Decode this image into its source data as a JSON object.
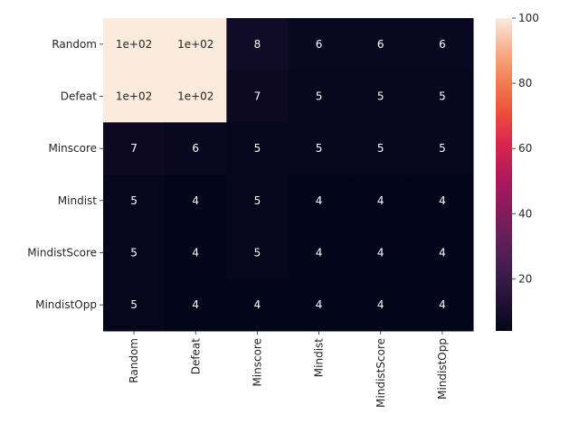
{
  "chart_data": {
    "type": "heatmap",
    "title": "",
    "xlabel": "",
    "ylabel": "",
    "x_categories": [
      "Random",
      "Defeat",
      "Minscore",
      "Mindist",
      "MindistScore",
      "MindistOpp"
    ],
    "y_categories": [
      "Random",
      "Defeat",
      "Minscore",
      "Mindist",
      "MindistScore",
      "MindistOpp"
    ],
    "values": [
      [
        100,
        100,
        8,
        6,
        6,
        6
      ],
      [
        100,
        100,
        7,
        5,
        5,
        5
      ],
      [
        7,
        6,
        5,
        5,
        5,
        5
      ],
      [
        5,
        4,
        5,
        4,
        4,
        4
      ],
      [
        5,
        4,
        5,
        4,
        4,
        4
      ],
      [
        5,
        4,
        4,
        4,
        4,
        4
      ]
    ],
    "annotations": [
      [
        "1e+02",
        "1e+02",
        "8",
        "6",
        "6",
        "6"
      ],
      [
        "1e+02",
        "1e+02",
        "7",
        "5",
        "5",
        "5"
      ],
      [
        "7",
        "6",
        "5",
        "5",
        "5",
        "5"
      ],
      [
        "5",
        "4",
        "5",
        "4",
        "4",
        "4"
      ],
      [
        "5",
        "4",
        "5",
        "4",
        "4",
        "4"
      ],
      [
        "5",
        "4",
        "4",
        "4",
        "4",
        "4"
      ]
    ],
    "colormap": "rocket",
    "colorbar": {
      "range": [
        4,
        100
      ],
      "ticks": [
        20,
        40,
        60,
        80,
        100
      ],
      "labels": [
        "20",
        "40",
        "60",
        "80",
        "100"
      ]
    },
    "grid": false
  }
}
